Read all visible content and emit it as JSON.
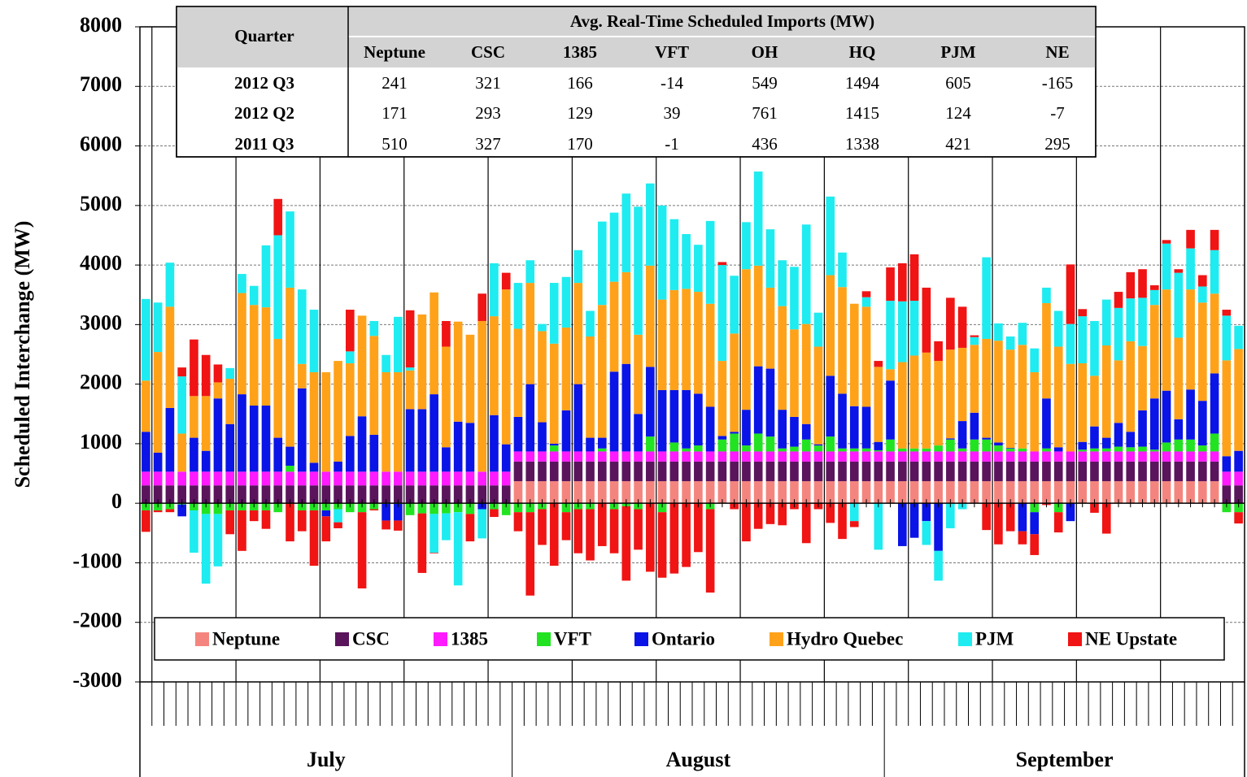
{
  "chart_data": {
    "type": "stacked-bar",
    "y_label": "Scheduled Interchange (MW)",
    "ylim": [
      -3000,
      8000
    ],
    "yticks": [
      -3000,
      -2000,
      -1000,
      0,
      1000,
      2000,
      3000,
      4000,
      5000,
      6000,
      7000,
      8000
    ],
    "grid": true,
    "legend": "bottom",
    "months": [
      "July",
      "August",
      "September"
    ],
    "month_days": [
      31,
      31,
      30
    ],
    "categories": [
      null,
      null,
      null,
      null,
      null,
      null,
      null,
      null,
      null,
      null,
      null,
      null,
      null,
      null,
      null,
      null,
      null,
      null,
      null,
      null,
      null,
      null,
      null,
      null,
      null,
      null,
      null,
      null,
      null,
      null,
      null,
      null,
      null,
      null,
      null,
      null,
      null,
      null,
      null,
      null,
      null,
      null,
      null,
      null,
      null,
      null,
      null,
      null,
      null,
      null,
      null,
      null,
      null,
      null,
      null,
      null,
      null,
      null,
      null,
      null,
      null,
      null,
      null,
      null,
      null,
      null,
      null,
      null,
      null,
      null,
      null,
      null,
      null,
      null,
      null,
      null,
      null,
      null,
      null,
      null,
      null,
      null,
      null,
      null,
      null,
      null,
      null,
      null,
      null,
      null,
      null,
      null
    ],
    "series": [
      {
        "name": "Neptune",
        "color": "#f4857e",
        "values": [
          0,
          0,
          0,
          0,
          0,
          0,
          0,
          0,
          0,
          0,
          0,
          0,
          0,
          0,
          0,
          0,
          0,
          0,
          0,
          0,
          0,
          0,
          0,
          0,
          0,
          0,
          0,
          0,
          0,
          0,
          0,
          370,
          370,
          370,
          370,
          370,
          370,
          370,
          370,
          370,
          370,
          370,
          370,
          370,
          370,
          370,
          370,
          370,
          370,
          370,
          370,
          370,
          370,
          370,
          370,
          370,
          370,
          370,
          370,
          370,
          370,
          370,
          370,
          370,
          370,
          370,
          370,
          370,
          370,
          370,
          370,
          370,
          370,
          370,
          370,
          370,
          370,
          370,
          370,
          370,
          370,
          370,
          370,
          370,
          370,
          370,
          370,
          370,
          370,
          370,
          0,
          0
        ]
      },
      {
        "name": "CSC",
        "color": "#5a145c",
        "values": [
          300,
          300,
          300,
          300,
          300,
          300,
          300,
          300,
          300,
          300,
          300,
          300,
          300,
          300,
          300,
          300,
          300,
          300,
          300,
          300,
          300,
          300,
          300,
          300,
          300,
          300,
          300,
          300,
          300,
          300,
          300,
          330,
          330,
          330,
          330,
          330,
          330,
          330,
          330,
          330,
          330,
          330,
          330,
          330,
          330,
          330,
          330,
          330,
          330,
          330,
          330,
          330,
          330,
          330,
          330,
          330,
          330,
          330,
          330,
          330,
          330,
          330,
          330,
          330,
          330,
          330,
          330,
          330,
          330,
          330,
          330,
          330,
          330,
          330,
          330,
          330,
          330,
          330,
          330,
          330,
          330,
          330,
          330,
          330,
          330,
          330,
          330,
          330,
          330,
          330,
          300,
          300
        ]
      },
      {
        "name": "1385",
        "color": "#ff1aff",
        "values": [
          230,
          230,
          230,
          230,
          230,
          230,
          230,
          230,
          230,
          230,
          230,
          230,
          230,
          230,
          230,
          230,
          230,
          230,
          230,
          230,
          230,
          230,
          230,
          230,
          230,
          230,
          230,
          230,
          230,
          230,
          230,
          170,
          170,
          170,
          170,
          170,
          170,
          170,
          170,
          170,
          170,
          170,
          170,
          170,
          170,
          170,
          170,
          170,
          170,
          170,
          170,
          170,
          170,
          170,
          170,
          170,
          170,
          170,
          170,
          170,
          170,
          170,
          170,
          170,
          170,
          170,
          170,
          170,
          170,
          170,
          170,
          170,
          170,
          170,
          170,
          170,
          170,
          170,
          170,
          170,
          170,
          170,
          170,
          170,
          170,
          170,
          170,
          170,
          170,
          170,
          230,
          230
        ]
      },
      {
        "name": "VFT",
        "color": "#22e322",
        "values": [
          -120,
          -120,
          -100,
          -20,
          -120,
          -180,
          -180,
          -120,
          -120,
          -120,
          -120,
          -150,
          100,
          -120,
          -120,
          -120,
          -100,
          -150,
          -150,
          -100,
          -10,
          -10,
          -200,
          -170,
          -180,
          -170,
          -150,
          -180,
          0,
          -100,
          -200,
          -150,
          -150,
          -100,
          100,
          -150,
          -100,
          -100,
          50,
          -100,
          -50,
          -100,
          250,
          -150,
          150,
          50,
          100,
          -100,
          200,
          300,
          100,
          300,
          250,
          50,
          80,
          200,
          100,
          250,
          50,
          50,
          50,
          20,
          200,
          50,
          50,
          50,
          100,
          200,
          50,
          200,
          200,
          100,
          50,
          50,
          -150,
          50,
          -150,
          0,
          30,
          50,
          50,
          80,
          70,
          80,
          30,
          150,
          200,
          200,
          100,
          300,
          -150,
          -150
        ]
      },
      {
        "name": "Ontario",
        "color": "#0a14e6",
        "values": [
          670,
          320,
          1070,
          -200,
          570,
          350,
          1230,
          800,
          1300,
          1110,
          1110,
          570,
          320,
          1400,
          150,
          -100,
          170,
          600,
          930,
          620,
          -280,
          -280,
          1050,
          1050,
          1300,
          410,
          840,
          820,
          -100,
          950,
          460,
          580,
          1130,
          490,
          30,
          690,
          1130,
          230,
          180,
          1340,
          1470,
          630,
          1170,
          1030,
          880,
          980,
          870,
          750,
          60,
          30,
          600,
          1130,
          1140,
          650,
          500,
          260,
          20,
          1020,
          920,
          710,
          700,
          140,
          990,
          -720,
          -580,
          -300,
          -800,
          20,
          460,
          450,
          30,
          50,
          10,
          -470,
          -370,
          840,
          70,
          -300,
          130,
          370,
          180,
          400,
          260,
          610,
          860,
          870,
          340,
          840,
          750,
          1010,
          260,
          350
        ]
      },
      {
        "name": "Hydro Quebec",
        "color": "#ffa21a",
        "values": [
          860,
          1690,
          1700,
          640,
          700,
          920,
          270,
          760,
          1700,
          1690,
          1650,
          1660,
          2670,
          410,
          1520,
          1670,
          1690,
          1220,
          1690,
          1660,
          1670,
          1670,
          650,
          1590,
          1710,
          1690,
          1680,
          1480,
          2530,
          1660,
          2600,
          1480,
          1700,
          1530,
          1680,
          1390,
          1700,
          1700,
          2230,
          1510,
          1540,
          1330,
          1700,
          1520,
          1680,
          1700,
          1710,
          1730,
          1260,
          1650,
          2360,
          1690,
          1360,
          1740,
          1470,
          1680,
          1640,
          1690,
          1790,
          1720,
          1680,
          1260,
          190,
          1450,
          1560,
          1610,
          1420,
          1490,
          1230,
          1140,
          1660,
          1710,
          1650,
          1740,
          1330,
          1600,
          1690,
          1470,
          1320,
          850,
          1550,
          1050,
          1520,
          1080,
          1570,
          1700,
          1370,
          1680,
          1650,
          1340,
          1610,
          1710
        ]
      },
      {
        "name": "PJM",
        "color": "#1eecf0",
        "values": [
          1370,
          830,
          740,
          960,
          -710,
          -1170,
          -880,
          180,
          320,
          320,
          1040,
          1740,
          1280,
          1250,
          1050,
          0,
          -220,
          200,
          0,
          250,
          290,
          930,
          50,
          0,
          -650,
          -450,
          -1230,
          0,
          -490,
          890,
          0,
          770,
          380,
          120,
          1020,
          850,
          550,
          430,
          1400,
          1160,
          1320,
          2150,
          1380,
          1580,
          1190,
          920,
          790,
          1390,
          1610,
          970,
          790,
          1580,
          980,
          770,
          1050,
          1670,
          570,
          1320,
          580,
          -300,
          160,
          -780,
          1150,
          1020,
          920,
          -400,
          -500,
          -420,
          -100,
          130,
          1370,
          290,
          220,
          370,
          400,
          260,
          600,
          670,
          790,
          920,
          770,
          880,
          720,
          810,
          250,
          770,
          1090,
          690,
          270,
          730,
          750,
          390
        ]
      },
      {
        "name": "NE Upstate",
        "color": "#f01414",
        "values": [
          -360,
          -30,
          -50,
          150,
          950,
          690,
          300,
          -400,
          -680,
          -180,
          -310,
          610,
          -640,
          -350,
          -930,
          -420,
          -100,
          700,
          -1280,
          -20,
          -150,
          -170,
          960,
          -1000,
          -10,
          430,
          0,
          -460,
          460,
          -130,
          280,
          -320,
          -1400,
          -600,
          -1050,
          -470,
          -740,
          -860,
          -720,
          -740,
          -1250,
          -680,
          -1150,
          -1100,
          -1180,
          -1070,
          -820,
          -1400,
          50,
          -100,
          -640,
          -430,
          -350,
          -370,
          -100,
          -670,
          -100,
          -330,
          -600,
          -100,
          100,
          100,
          560,
          640,
          780,
          1090,
          330,
          870,
          690,
          30,
          -450,
          -690,
          -470,
          -220,
          -350,
          -30,
          -340,
          1000,
          120,
          -160,
          -510,
          270,
          440,
          480,
          80,
          60,
          60,
          310,
          190,
          340,
          100,
          -190
        ]
      }
    ]
  },
  "table": {
    "title": "Avg. Real-Time Scheduled Imports (MW)",
    "row_header": "Quarter",
    "columns": [
      "Neptune",
      "CSC",
      "1385",
      "VFT",
      "OH",
      "HQ",
      "PJM",
      "NE"
    ],
    "rows": [
      {
        "label": "2012 Q3",
        "values": [
          241,
          321,
          166,
          -14,
          549,
          1494,
          605,
          -165
        ]
      },
      {
        "label": "2012 Q2",
        "values": [
          171,
          293,
          129,
          39,
          761,
          1415,
          124,
          -7
        ]
      },
      {
        "label": "2011 Q3",
        "values": [
          510,
          327,
          170,
          -1,
          436,
          1338,
          421,
          295
        ]
      }
    ]
  }
}
